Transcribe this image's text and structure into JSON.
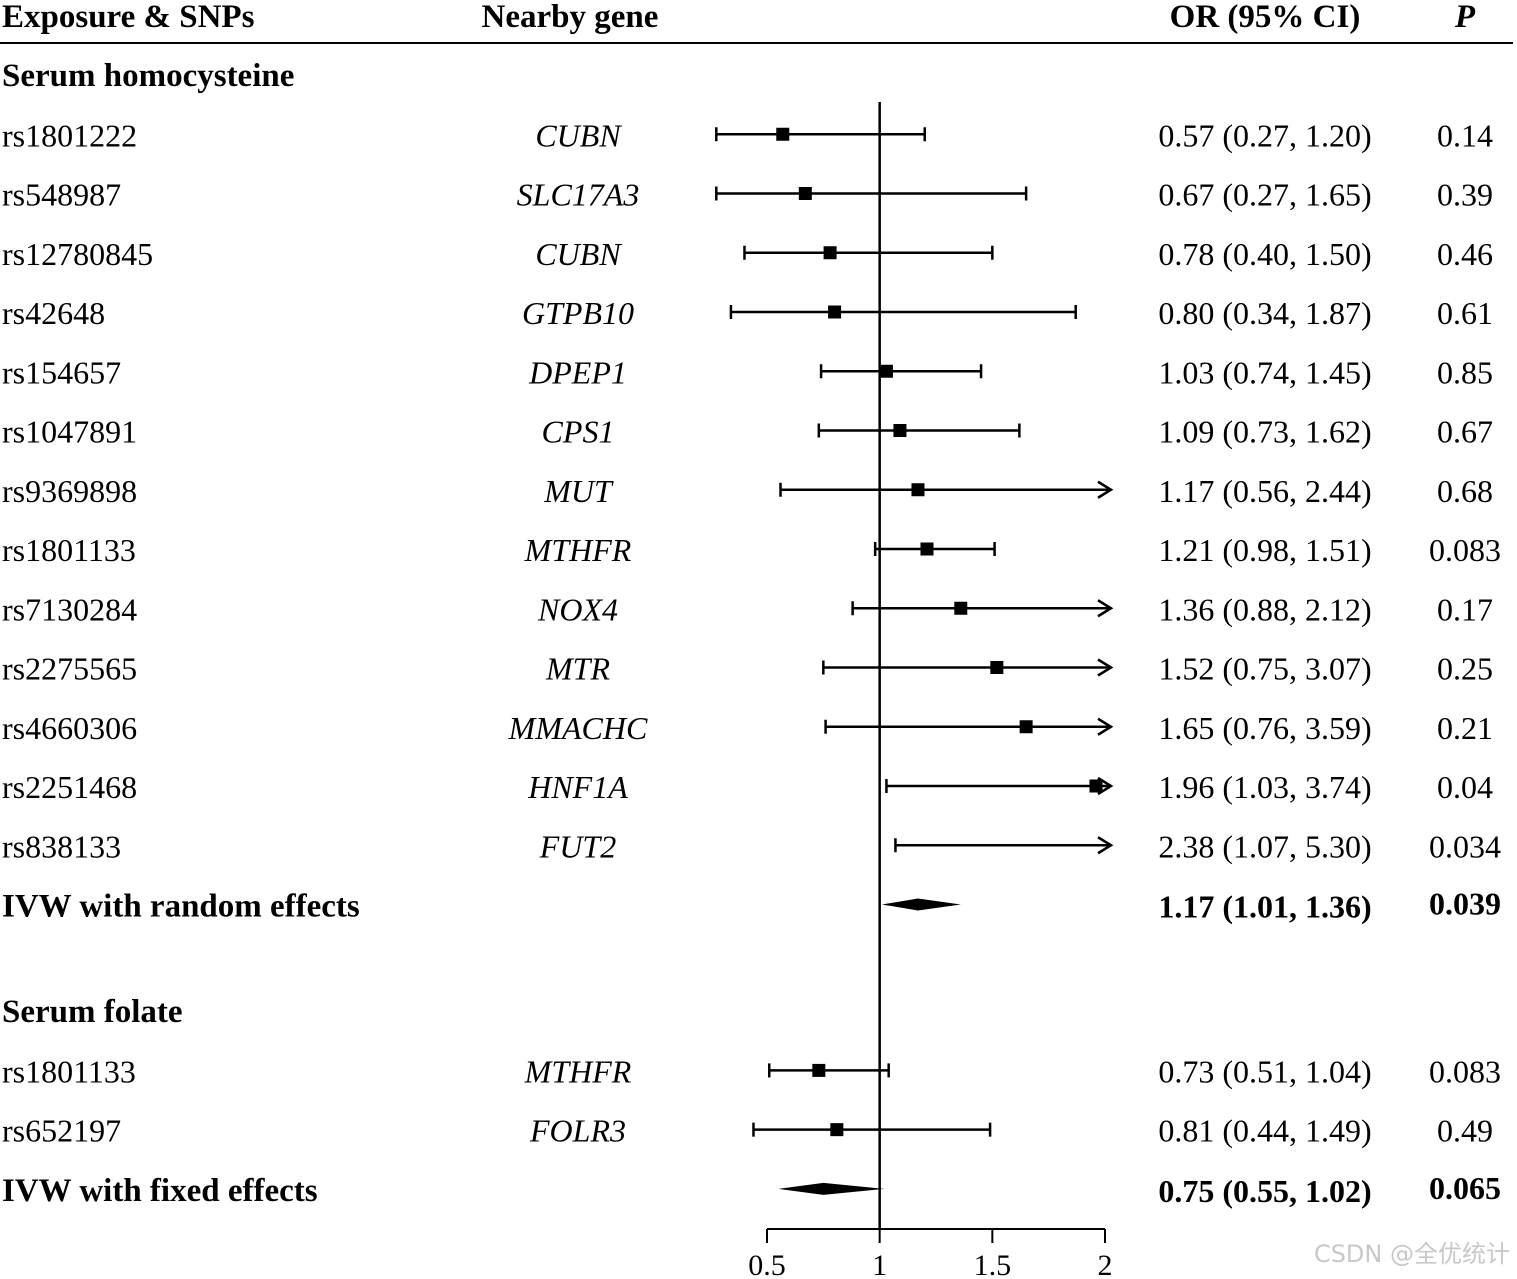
{
  "headers": {
    "exposure": "Exposure & SNPs",
    "gene": "Nearby gene",
    "or": "OR (95% CI)",
    "p": "P"
  },
  "chart_data": {
    "type": "forest",
    "null_line": 1,
    "xlim": [
      0.5,
      2
    ],
    "xticks": [
      0.5,
      1,
      1.5,
      2
    ],
    "xtick_labels": [
      "0.5",
      "1",
      "1.5",
      "2"
    ],
    "sections": [
      {
        "title": "Serum homocysteine",
        "rows": [
          {
            "snp": "rs1801222",
            "gene": "CUBN",
            "or": 0.57,
            "lo": 0.27,
            "hi": 1.2,
            "ci_text": "0.57 (0.27, 1.20)",
            "p": "0.14"
          },
          {
            "snp": "rs548987",
            "gene": "SLC17A3",
            "or": 0.67,
            "lo": 0.27,
            "hi": 1.65,
            "ci_text": "0.67 (0.27, 1.65)",
            "p": "0.39"
          },
          {
            "snp": "rs12780845",
            "gene": "CUBN",
            "or": 0.78,
            "lo": 0.4,
            "hi": 1.5,
            "ci_text": "0.78 (0.40, 1.50)",
            "p": "0.46"
          },
          {
            "snp": "rs42648",
            "gene": "GTPB10",
            "or": 0.8,
            "lo": 0.34,
            "hi": 1.87,
            "ci_text": "0.80 (0.34, 1.87)",
            "p": "0.61"
          },
          {
            "snp": "rs154657",
            "gene": "DPEP1",
            "or": 1.03,
            "lo": 0.74,
            "hi": 1.45,
            "ci_text": "1.03 (0.74, 1.45)",
            "p": "0.85"
          },
          {
            "snp": "rs1047891",
            "gene": "CPS1",
            "or": 1.09,
            "lo": 0.73,
            "hi": 1.62,
            "ci_text": "1.09 (0.73, 1.62)",
            "p": "0.67"
          },
          {
            "snp": "rs9369898",
            "gene": "MUT",
            "or": 1.17,
            "lo": 0.56,
            "hi": 2.44,
            "ci_text": "1.17 (0.56, 2.44)",
            "p": "0.68"
          },
          {
            "snp": "rs1801133",
            "gene": "MTHFR",
            "or": 1.21,
            "lo": 0.98,
            "hi": 1.51,
            "ci_text": "1.21 (0.98, 1.51)",
            "p": "0.083"
          },
          {
            "snp": "rs7130284",
            "gene": "NOX4",
            "or": 1.36,
            "lo": 0.88,
            "hi": 2.12,
            "ci_text": "1.36 (0.88, 2.12)",
            "p": "0.17"
          },
          {
            "snp": "rs2275565",
            "gene": "MTR",
            "or": 1.52,
            "lo": 0.75,
            "hi": 3.07,
            "ci_text": "1.52 (0.75, 3.07)",
            "p": "0.25"
          },
          {
            "snp": "rs4660306",
            "gene": "MMACHC",
            "or": 1.65,
            "lo": 0.76,
            "hi": 3.59,
            "ci_text": "1.65 (0.76, 3.59)",
            "p": "0.21"
          },
          {
            "snp": "rs2251468",
            "gene": "HNF1A",
            "or": 1.96,
            "lo": 1.03,
            "hi": 3.74,
            "ci_text": "1.96 (1.03, 3.74)",
            "p": "0.04"
          },
          {
            "snp": "rs838133",
            "gene": "FUT2",
            "or": 2.38,
            "lo": 1.07,
            "hi": 5.3,
            "ci_text": "2.38 (1.07, 5.30)",
            "p": "0.034"
          }
        ],
        "summary": {
          "label": "IVW with random effects",
          "or": 1.17,
          "lo": 1.01,
          "hi": 1.36,
          "ci_text": "1.17 (1.01, 1.36)",
          "p": "0.039"
        }
      },
      {
        "title": "Serum folate",
        "rows": [
          {
            "snp": "rs1801133",
            "gene": "MTHFR",
            "or": 0.73,
            "lo": 0.51,
            "hi": 1.04,
            "ci_text": "0.73 (0.51, 1.04)",
            "p": "0.083"
          },
          {
            "snp": "rs652197",
            "gene": "FOLR3",
            "or": 0.81,
            "lo": 0.44,
            "hi": 1.49,
            "ci_text": "0.81 (0.44, 1.49)",
            "p": "0.49"
          }
        ],
        "summary": {
          "label": "IVW with fixed effects",
          "or": 0.75,
          "lo": 0.55,
          "hi": 1.02,
          "ci_text": "0.75 (0.55, 1.02)",
          "p": "0.065"
        }
      }
    ]
  },
  "watermark": "CSDN @全优统计"
}
